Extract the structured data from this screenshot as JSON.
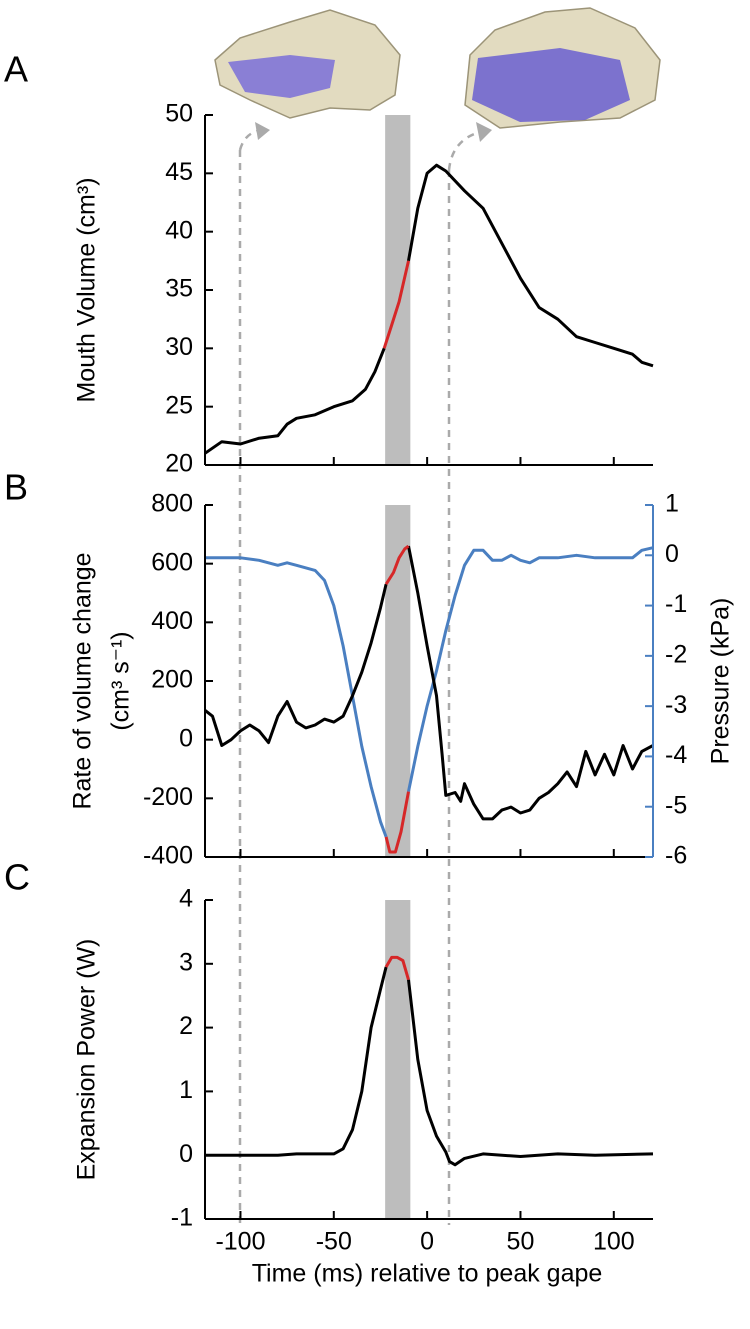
{
  "chart_data": [
    {
      "type": "line",
      "panel_label": "A",
      "ylabel": "Mouth Volume (cm³)",
      "xlim": [
        -119,
        121
      ],
      "xticks": [
        -100,
        -50,
        0,
        50,
        100
      ],
      "xtick_labels": false,
      "ylim": [
        20,
        50
      ],
      "yticks": [
        20,
        25,
        30,
        35,
        40,
        45,
        50
      ],
      "highlight": [
        -22.5,
        -9
      ],
      "highlight_color": "#bdbdbd",
      "series": [
        {
          "color": "#000000",
          "x": [
            -119,
            -110,
            -100,
            -90,
            -80,
            -75,
            -70,
            -60,
            -50,
            -40,
            -33,
            -28,
            -23
          ],
          "values": [
            21,
            22,
            21.8,
            22.3,
            22.5,
            23.5,
            24,
            24.3,
            25,
            25.5,
            26.5,
            28,
            30
          ]
        },
        {
          "color": "#d62728",
          "x": [
            -23,
            -19,
            -15,
            -10
          ],
          "values": [
            30,
            32,
            34,
            37.5
          ]
        },
        {
          "color": "#000000",
          "x": [
            -10,
            -5,
            0,
            5,
            10,
            20,
            30,
            40,
            50,
            60,
            70,
            80,
            90,
            100,
            110,
            115,
            121
          ],
          "values": [
            37.5,
            42,
            45,
            45.7,
            45.2,
            43.5,
            42,
            39,
            36,
            33.5,
            32.5,
            31,
            30.5,
            30,
            29.5,
            28.8,
            28.5
          ]
        }
      ]
    },
    {
      "type": "line",
      "panel_label": "B",
      "ylabel": [
        "Rate of volume change",
        "(cm³ s⁻¹)"
      ],
      "y2label": "Pressure (kPa)",
      "y2color": "#4a7fc1",
      "xlim": [
        -119,
        121
      ],
      "xticks": [
        -100,
        -50,
        0,
        50,
        100
      ],
      "xtick_labels": false,
      "ylim": [
        -400,
        800
      ],
      "yticks": [
        -400,
        -200,
        0,
        200,
        400,
        600,
        800
      ],
      "y2lim": [
        -6,
        1
      ],
      "y2ticks": [
        -6,
        -5,
        -4,
        -3,
        -2,
        -1,
        0,
        1
      ],
      "highlight": [
        -22.5,
        -9
      ],
      "highlight_color": "#bdbdbd",
      "series": [
        {
          "color": "#4a7fc1",
          "axis": "y2",
          "x": [
            -119,
            -100,
            -90,
            -80,
            -75,
            -70,
            -60,
            -55,
            -50,
            -45,
            -40,
            -35,
            -30,
            -25,
            -22
          ],
          "values": [
            -0.05,
            -0.05,
            -0.1,
            -0.2,
            -0.15,
            -0.2,
            -0.3,
            -0.5,
            -1,
            -1.8,
            -2.8,
            -3.8,
            -4.6,
            -5.3,
            -5.6
          ]
        },
        {
          "color": "#4a7fc1",
          "axis": "y2",
          "x": [
            -10,
            -5,
            0,
            5,
            10,
            15,
            20,
            25,
            30,
            35,
            40,
            45,
            50,
            55,
            60,
            70,
            80,
            90,
            100,
            110,
            115,
            121
          ],
          "values": [
            -4.7,
            -3.8,
            -3,
            -2.3,
            -1.5,
            -0.8,
            -0.2,
            0.1,
            0.1,
            -0.1,
            -0.1,
            0,
            -0.1,
            -0.15,
            -0.05,
            -0.05,
            0,
            -0.05,
            -0.05,
            -0.05,
            0.1,
            0.15
          ]
        },
        {
          "color": "#d62728",
          "axis": "y2",
          "x": [
            -22,
            -20,
            -17,
            -14,
            -10
          ],
          "values": [
            -5.6,
            -5.9,
            -5.9,
            -5.5,
            -4.7
          ]
        },
        {
          "color": "#000000",
          "x": [
            -119,
            -115,
            -110,
            -105,
            -100,
            -95,
            -90,
            -85,
            -80,
            -75,
            -70,
            -65,
            -60,
            -55,
            -50,
            -45,
            -40,
            -35,
            -30,
            -25,
            -22
          ],
          "values": [
            100,
            80,
            -20,
            0,
            30,
            50,
            30,
            -10,
            80,
            130,
            60,
            40,
            50,
            70,
            60,
            80,
            150,
            230,
            330,
            450,
            530
          ]
        },
        {
          "color": "#000000",
          "x": [
            -10,
            -5,
            0,
            5,
            8,
            10,
            15,
            18,
            20,
            25,
            30,
            35,
            40,
            45,
            50,
            55,
            60,
            65,
            70,
            75,
            80,
            85,
            90,
            95,
            100,
            105,
            110,
            115,
            121
          ],
          "values": [
            660,
            500,
            320,
            150,
            -50,
            -190,
            -180,
            -210,
            -150,
            -220,
            -270,
            -270,
            -240,
            -230,
            -250,
            -240,
            -200,
            -180,
            -150,
            -110,
            -160,
            -40,
            -120,
            -50,
            -120,
            -20,
            -100,
            -40,
            -20
          ]
        },
        {
          "color": "#d62728",
          "x": [
            -22,
            -18,
            -15,
            -12,
            -10
          ],
          "values": [
            530,
            570,
            620,
            650,
            660
          ]
        }
      ]
    },
    {
      "type": "line",
      "panel_label": "C",
      "ylabel": "Expansion Power (W)",
      "xlabel": "Time (ms) relative to peak gape",
      "xlim": [
        -119,
        121
      ],
      "xticks": [
        -100,
        -50,
        0,
        50,
        100
      ],
      "xtick_labels": true,
      "ylim": [
        -1,
        4
      ],
      "yticks": [
        -1,
        0,
        1,
        2,
        3,
        4
      ],
      "highlight": [
        -22.5,
        -9
      ],
      "highlight_color": "#bdbdbd",
      "series": [
        {
          "color": "#000000",
          "x": [
            -119,
            -80,
            -70,
            -50,
            -45,
            -40,
            -35,
            -30,
            -25,
            -22
          ],
          "values": [
            0,
            0,
            0.02,
            0.02,
            0.1,
            0.4,
            1,
            2,
            2.6,
            2.95
          ]
        },
        {
          "color": "#d62728",
          "x": [
            -22,
            -19,
            -16,
            -13,
            -10
          ],
          "values": [
            2.95,
            3.1,
            3.1,
            3.05,
            2.75
          ]
        },
        {
          "color": "#000000",
          "x": [
            -10,
            -5,
            0,
            5,
            10,
            12,
            15,
            20,
            30,
            50,
            70,
            90,
            121
          ],
          "values": [
            2.75,
            1.5,
            0.7,
            0.3,
            0.05,
            -0.1,
            -0.15,
            -0.05,
            0.02,
            -0.02,
            0.02,
            0,
            0.02
          ]
        }
      ]
    }
  ]
}
